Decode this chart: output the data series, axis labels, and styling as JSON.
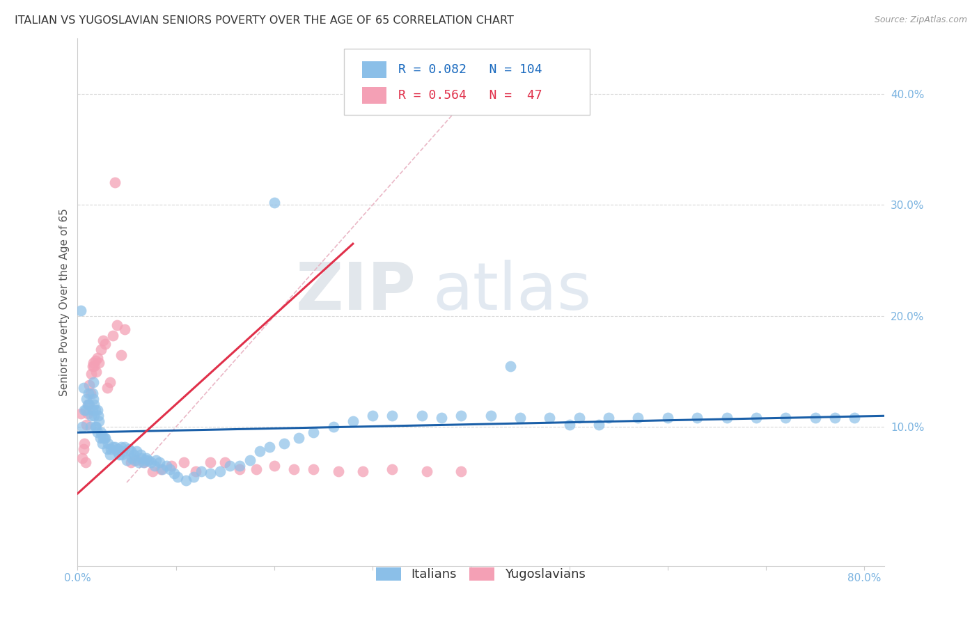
{
  "title": "ITALIAN VS YUGOSLAVIAN SENIORS POVERTY OVER THE AGE OF 65 CORRELATION CHART",
  "source": "Source: ZipAtlas.com",
  "ylabel": "Seniors Poverty Over the Age of 65",
  "xlim": [
    0.0,
    0.82
  ],
  "ylim": [
    -0.025,
    0.45
  ],
  "xtick_positions": [
    0.0,
    0.1,
    0.2,
    0.3,
    0.4,
    0.5,
    0.6,
    0.7,
    0.8
  ],
  "xticklabels": [
    "0.0%",
    "",
    "",
    "",
    "",
    "",
    "",
    "",
    "80.0%"
  ],
  "ytick_positions": [
    0.1,
    0.2,
    0.3,
    0.4
  ],
  "yticklabels_right": [
    "10.0%",
    "20.0%",
    "30.0%",
    "40.0%"
  ],
  "italian_color": "#8bbfe8",
  "yugoslavian_color": "#f4a0b5",
  "italian_line_color": "#1a5fa8",
  "yugoslavian_line_color": "#e0304a",
  "diagonal_color": "#e8a0b0",
  "R_italian": 0.082,
  "N_italian": 104,
  "R_yugoslavian": 0.564,
  "N_yugoslavian": 47,
  "watermark_zip": "ZIP",
  "watermark_atlas": "atlas",
  "legend_italian": "Italians",
  "legend_yugoslavian": "Yugoslavians",
  "italian_x": [
    0.003,
    0.005,
    0.006,
    0.007,
    0.008,
    0.009,
    0.01,
    0.011,
    0.012,
    0.013,
    0.014,
    0.015,
    0.015,
    0.016,
    0.016,
    0.017,
    0.017,
    0.018,
    0.018,
    0.019,
    0.02,
    0.02,
    0.021,
    0.022,
    0.023,
    0.024,
    0.025,
    0.026,
    0.027,
    0.028,
    0.03,
    0.031,
    0.033,
    0.034,
    0.036,
    0.038,
    0.04,
    0.041,
    0.042,
    0.044,
    0.045,
    0.046,
    0.048,
    0.05,
    0.052,
    0.054,
    0.055,
    0.057,
    0.058,
    0.06,
    0.062,
    0.064,
    0.065,
    0.067,
    0.069,
    0.07,
    0.072,
    0.075,
    0.078,
    0.08,
    0.083,
    0.086,
    0.09,
    0.094,
    0.098,
    0.102,
    0.11,
    0.118,
    0.126,
    0.135,
    0.145,
    0.155,
    0.165,
    0.175,
    0.185,
    0.195,
    0.21,
    0.225,
    0.24,
    0.26,
    0.28,
    0.3,
    0.32,
    0.35,
    0.37,
    0.39,
    0.42,
    0.45,
    0.48,
    0.51,
    0.54,
    0.57,
    0.6,
    0.63,
    0.66,
    0.69,
    0.72,
    0.75,
    0.77,
    0.79,
    0.5,
    0.53,
    0.44,
    0.2
  ],
  "italian_y": [
    0.205,
    0.1,
    0.135,
    0.115,
    0.115,
    0.125,
    0.12,
    0.13,
    0.12,
    0.1,
    0.11,
    0.13,
    0.115,
    0.125,
    0.14,
    0.11,
    0.12,
    0.115,
    0.1,
    0.1,
    0.115,
    0.095,
    0.11,
    0.105,
    0.09,
    0.095,
    0.085,
    0.09,
    0.09,
    0.09,
    0.08,
    0.085,
    0.075,
    0.08,
    0.082,
    0.082,
    0.078,
    0.08,
    0.075,
    0.082,
    0.075,
    0.078,
    0.082,
    0.07,
    0.08,
    0.078,
    0.072,
    0.075,
    0.07,
    0.078,
    0.068,
    0.075,
    0.072,
    0.068,
    0.07,
    0.072,
    0.07,
    0.068,
    0.065,
    0.07,
    0.068,
    0.062,
    0.065,
    0.062,
    0.058,
    0.055,
    0.052,
    0.055,
    0.06,
    0.058,
    0.06,
    0.065,
    0.065,
    0.07,
    0.078,
    0.082,
    0.085,
    0.09,
    0.095,
    0.1,
    0.105,
    0.11,
    0.11,
    0.11,
    0.108,
    0.11,
    0.11,
    0.108,
    0.108,
    0.108,
    0.108,
    0.108,
    0.108,
    0.108,
    0.108,
    0.108,
    0.108,
    0.108,
    0.108,
    0.108,
    0.102,
    0.102,
    0.155,
    0.302
  ],
  "yugoslav_x": [
    0.003,
    0.005,
    0.006,
    0.007,
    0.008,
    0.009,
    0.01,
    0.011,
    0.012,
    0.013,
    0.014,
    0.015,
    0.016,
    0.017,
    0.018,
    0.019,
    0.02,
    0.022,
    0.024,
    0.026,
    0.028,
    0.03,
    0.033,
    0.036,
    0.04,
    0.044,
    0.048,
    0.054,
    0.06,
    0.068,
    0.076,
    0.085,
    0.095,
    0.108,
    0.12,
    0.135,
    0.15,
    0.165,
    0.182,
    0.2,
    0.22,
    0.24,
    0.265,
    0.29,
    0.32,
    0.355,
    0.39
  ],
  "yugoslav_y": [
    0.112,
    0.072,
    0.08,
    0.085,
    0.068,
    0.102,
    0.112,
    0.12,
    0.138,
    0.13,
    0.148,
    0.155,
    0.158,
    0.155,
    0.16,
    0.15,
    0.162,
    0.158,
    0.17,
    0.178,
    0.175,
    0.135,
    0.14,
    0.182,
    0.192,
    0.165,
    0.188,
    0.068,
    0.07,
    0.068,
    0.06,
    0.062,
    0.065,
    0.068,
    0.06,
    0.068,
    0.068,
    0.062,
    0.062,
    0.065,
    0.062,
    0.062,
    0.06,
    0.06,
    0.062,
    0.06,
    0.06
  ],
  "yugoslav_outlier_x": [
    0.038
  ],
  "yugoslav_outlier_y": [
    0.32
  ],
  "grid_color": "#d8d8d8",
  "background_color": "#ffffff",
  "title_fontsize": 11.5,
  "axis_label_fontsize": 11,
  "tick_fontsize": 11,
  "legend_fontsize": 13
}
